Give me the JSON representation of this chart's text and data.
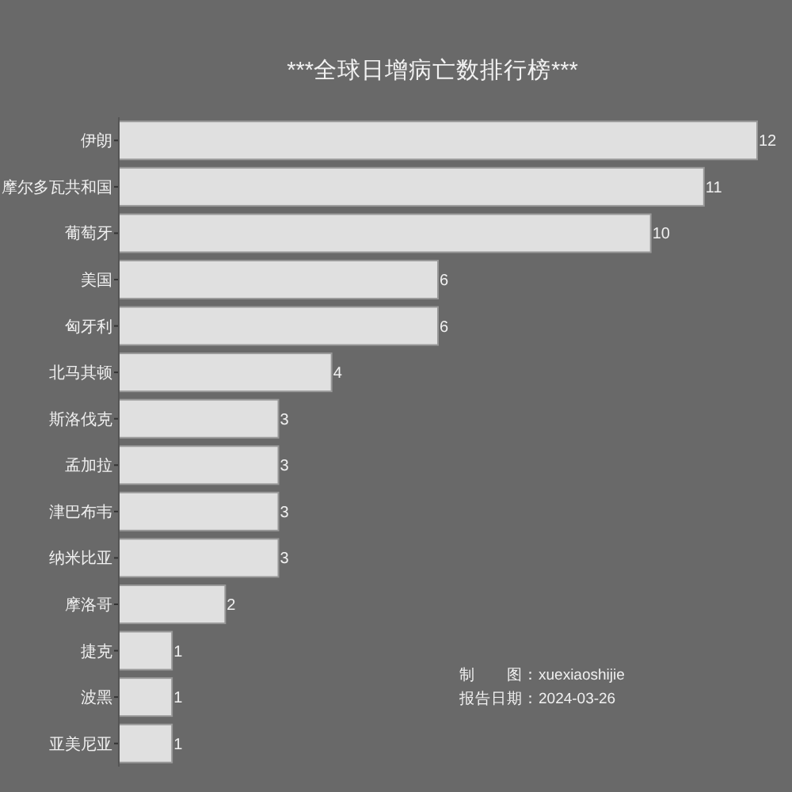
{
  "chart_data": {
    "type": "bar",
    "orientation": "horizontal",
    "title": "***全球日增病亡数排行榜***",
    "categories": [
      "伊朗",
      "摩尔多瓦共和国",
      "葡萄牙",
      "美国",
      "匈牙利",
      "北马其顿",
      "斯洛伐克",
      "孟加拉",
      "津巴布韦",
      "纳米比亚",
      "摩洛哥",
      "捷克",
      "波黑",
      "亚美尼亚"
    ],
    "values": [
      12,
      11,
      10,
      6,
      6,
      4,
      3,
      3,
      3,
      3,
      2,
      1,
      1,
      1
    ],
    "color": "#e0e0e0",
    "data_labels": true,
    "annotations": [
      "制　　图：xuexiaoshijie",
      "报告日期：2024-03-26"
    ]
  }
}
